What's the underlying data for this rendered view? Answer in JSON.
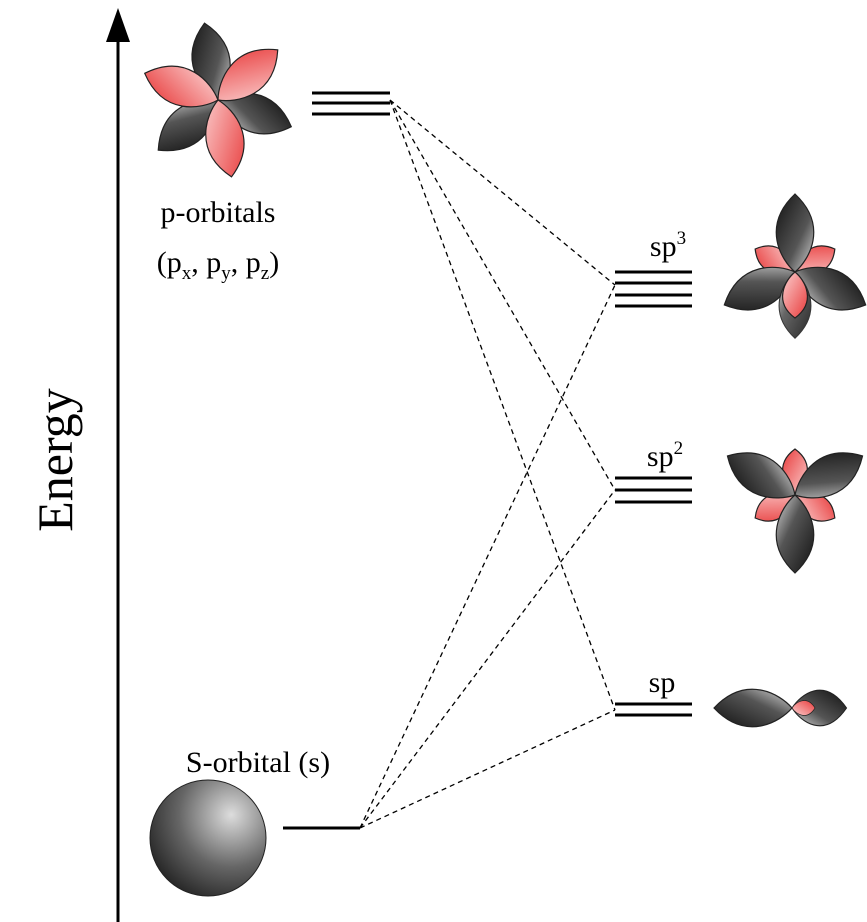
{
  "axis_label": "Energy",
  "p_orbitals": {
    "label": "p-orbitals",
    "notation": [
      {
        "text": "(p"
      },
      {
        "sub": "x"
      },
      {
        "text": ", p"
      },
      {
        "sub": "y"
      },
      {
        "text": ", p"
      },
      {
        "sub": "z"
      },
      {
        "text": ")"
      }
    ]
  },
  "s_orbital": {
    "label": "S-orbital (s)"
  },
  "hybrids": [
    {
      "base": "sp",
      "sup": "3"
    },
    {
      "base": "sp",
      "sup": "2"
    },
    {
      "base": "sp"
    }
  ]
}
